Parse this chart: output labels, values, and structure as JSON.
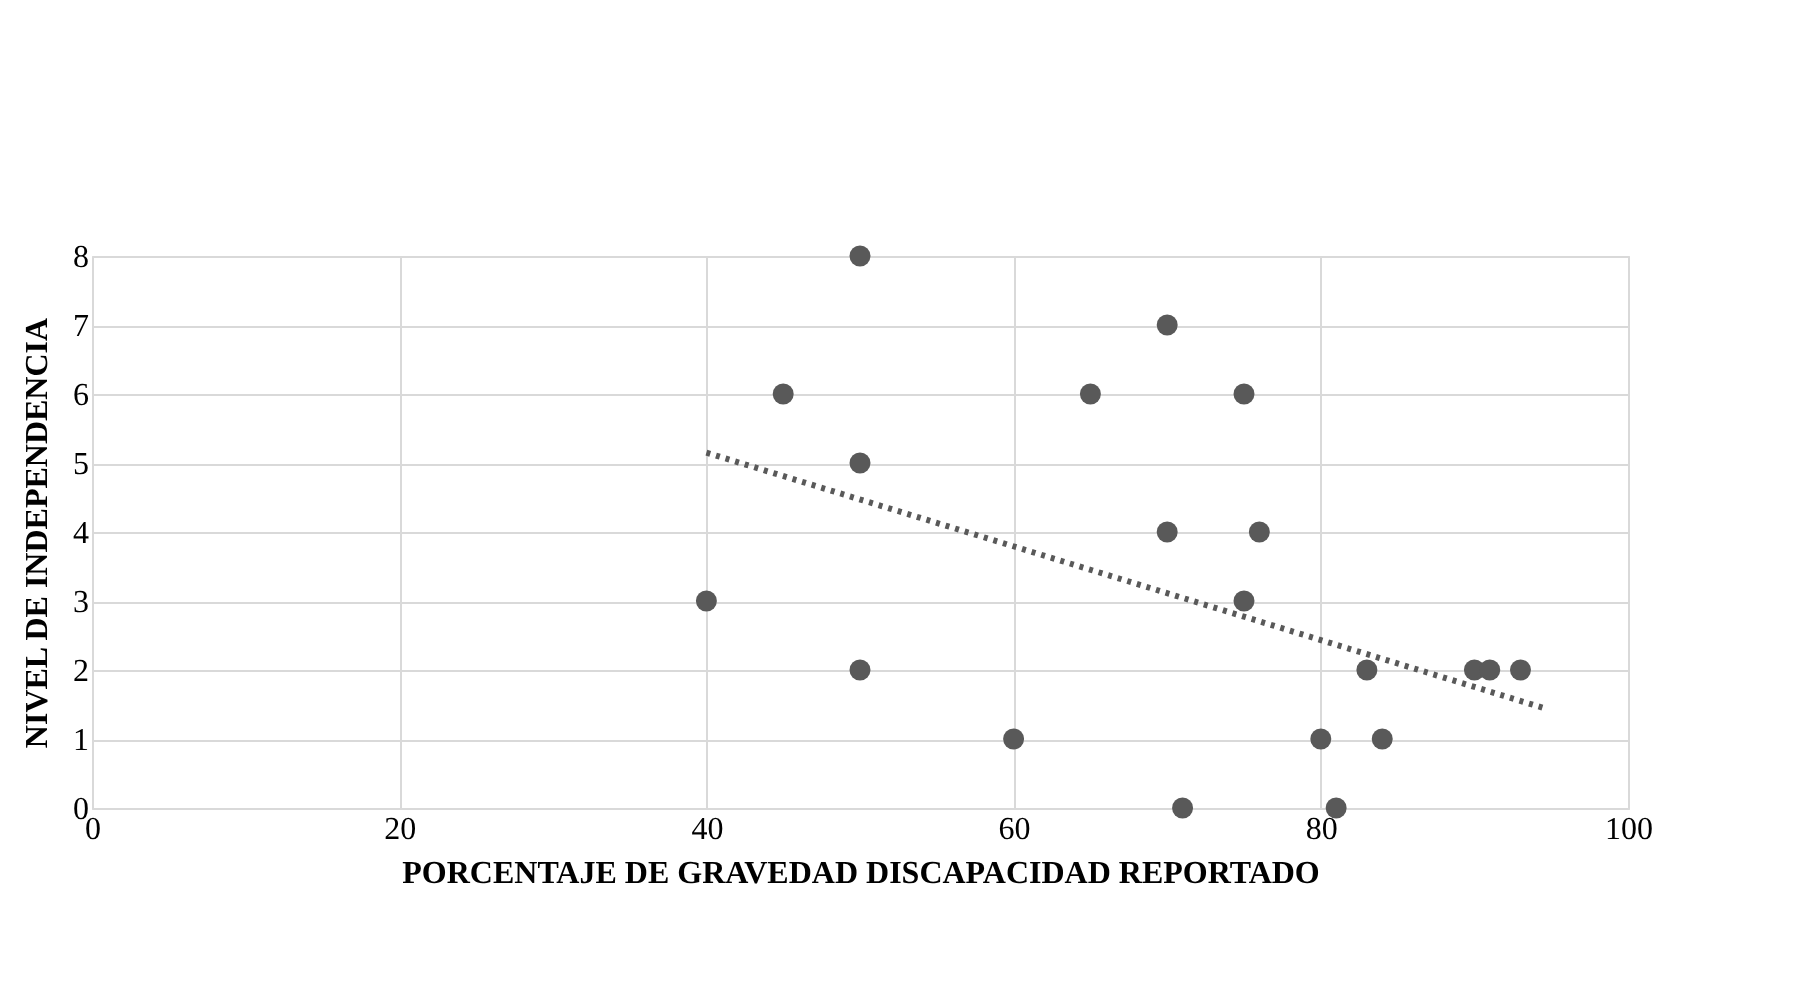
{
  "chart_data": {
    "type": "scatter",
    "xlabel": "PORCENTAJE DE GRAVEDAD DISCAPACIDAD REPORTADO",
    "ylabel": "NIVEL DE INDEPENDENCIA",
    "xlim": [
      0,
      100
    ],
    "xticks": [
      0,
      20,
      40,
      60,
      80,
      100
    ],
    "ylim": [
      0,
      8
    ],
    "yticks": [
      0,
      1,
      2,
      3,
      4,
      5,
      6,
      7,
      8
    ],
    "grid": true,
    "series": [
      {
        "marker": "circle",
        "color": "#595959",
        "x": [
          40,
          45,
          50,
          50,
          50,
          60,
          65,
          70,
          70,
          71,
          75,
          75,
          76,
          80,
          81,
          83,
          84,
          90,
          91,
          93
        ],
        "values": [
          3,
          6,
          8,
          5,
          2,
          1,
          6,
          7,
          4,
          0,
          6,
          3,
          4,
          1,
          0,
          2,
          1,
          2,
          2,
          2
        ]
      },
      {
        "type": "line",
        "line_style": "dotted",
        "color": "#595959",
        "x": [
          40,
          94.5
        ],
        "values": [
          5.15,
          1.45
        ]
      }
    ]
  }
}
